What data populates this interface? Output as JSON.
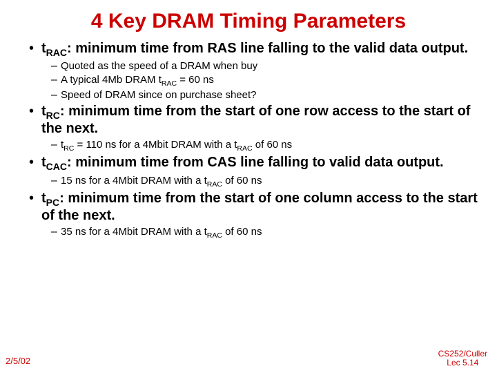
{
  "title": {
    "text": "4 Key DRAM Timing Parameters",
    "color": "#cc0000",
    "fontsize": 30
  },
  "main_fontsize": 20,
  "sub_fontsize": 15,
  "text_color": "#000000",
  "bullets": [
    {
      "term_prefix": "t",
      "term_sub": "RAC",
      "text": ": minimum time from RAS line falling to the valid data output.",
      "subs": [
        {
          "text": "Quoted as the speed of a DRAM when buy"
        },
        {
          "pre": "A typical 4Mb DRAM ",
          "term_prefix": "t",
          "term_sub": "RAC",
          "post": "  = 60 ns"
        },
        {
          "text": "Speed of DRAM since on purchase sheet?"
        }
      ]
    },
    {
      "term_prefix": "t",
      "term_sub": "RC",
      "text": ": minimum time from the start of one row access to the start of the next.",
      "subs": [
        {
          "term_prefix": "t",
          "term_sub": "RC",
          "mid": "  = 110 ns for a 4Mbit DRAM with a ",
          "term2_prefix": "t",
          "term2_sub": "RAC",
          "post": " of 60 ns"
        }
      ]
    },
    {
      "term_prefix": "t",
      "term_sub": "CAC",
      "text": ": minimum time from CAS line falling to valid data output.",
      "subs": [
        {
          "pre": "15 ns for a 4Mbit DRAM with a ",
          "term_prefix": "t",
          "term_sub": "RAC",
          "post": " of 60 ns"
        }
      ]
    },
    {
      "term_prefix": "t",
      "term_sub": "PC",
      "text": ": minimum time from the start of one column access to the start of the next.",
      "subs": [
        {
          "pre": "35 ns for a 4Mbit DRAM with a ",
          "term_prefix": "t",
          "term_sub": "RAC",
          "post": " of 60 ns"
        }
      ]
    }
  ],
  "footer": {
    "left": "2/5/02",
    "right_line1": "CS252/Culler",
    "right_line2": "Lec 5.",
    "right_page": "14",
    "left_color": "#cc0000",
    "right_color": "#cc0000",
    "left_fontsize": 13,
    "right_fontsize": 12
  },
  "background_color": "#ffffff"
}
